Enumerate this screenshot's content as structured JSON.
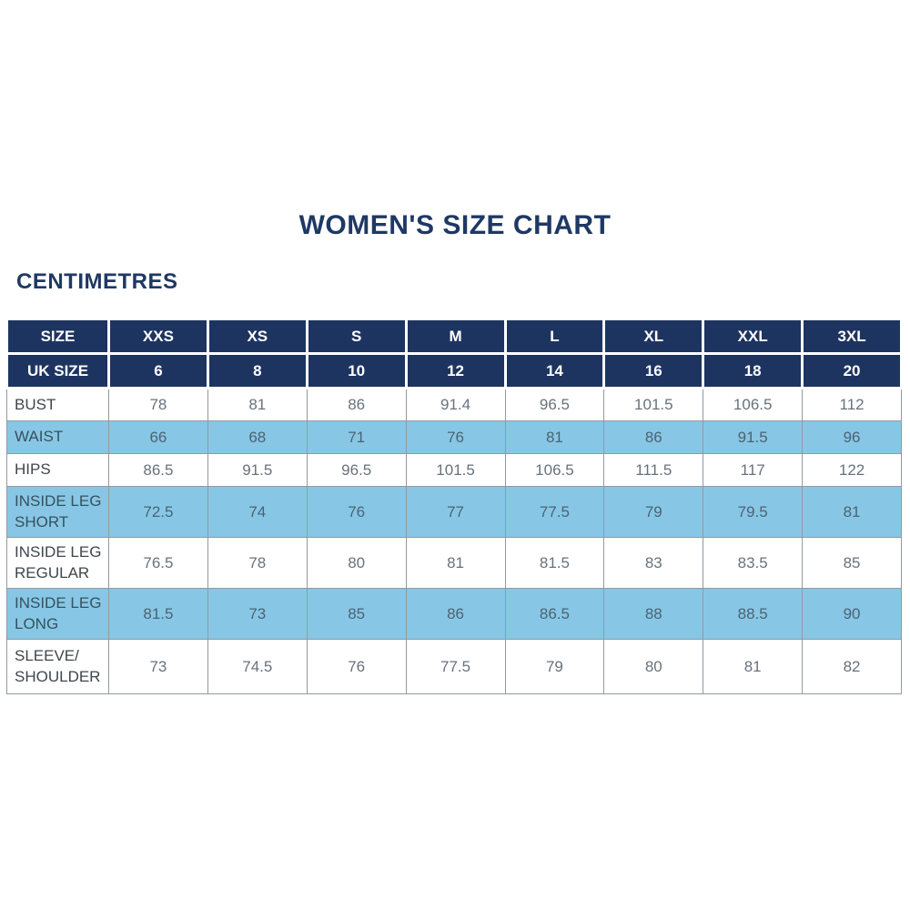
{
  "page": {
    "title": "WOMEN'S SIZE CHART",
    "unit_label": "CENTIMETRES"
  },
  "colors": {
    "header_navy": "#1e3460",
    "title_navy": "#1f3864",
    "row_light_blue": "#87c7e5",
    "label_text": "#3f464c",
    "value_text": "#68727c",
    "grid_border": "#93999f"
  },
  "table": {
    "header_rows": [
      {
        "cells": [
          "SIZE",
          "XXS",
          "XS",
          "S",
          "M",
          "L",
          "XL",
          "XXL",
          "3XL"
        ]
      },
      {
        "cells": [
          "UK SIZE",
          "6",
          "8",
          "10",
          "12",
          "14",
          "16",
          "18",
          "20"
        ]
      }
    ],
    "rows": [
      {
        "label": "BUST",
        "values": [
          "78",
          "81",
          "86",
          "91.4",
          "96.5",
          "101.5",
          "106.5",
          "112"
        ]
      },
      {
        "label": "WAIST",
        "values": [
          "66",
          "68",
          "71",
          "76",
          "81",
          "86",
          "91.5",
          "96"
        ]
      },
      {
        "label": "HIPS",
        "values": [
          "86.5",
          "91.5",
          "96.5",
          "101.5",
          "106.5",
          "111.5",
          "117",
          "122"
        ]
      },
      {
        "label": "INSIDE LEG\nSHORT",
        "values": [
          "72.5",
          "74",
          "76",
          "77",
          "77.5",
          "79",
          "79.5",
          "81"
        ]
      },
      {
        "label": "INSIDE LEG\nREGULAR",
        "values": [
          "76.5",
          "78",
          "80",
          "81",
          "81.5",
          "83",
          "83.5",
          "85"
        ]
      },
      {
        "label": "INSIDE LEG\nLONG",
        "values": [
          "81.5",
          "73",
          "85",
          "86",
          "86.5",
          "88",
          "88.5",
          "90"
        ]
      },
      {
        "label": "SLEEVE/\nSHOULDER",
        "values": [
          "73",
          "74.5",
          "76",
          "77.5",
          "79",
          "80",
          "81",
          "82"
        ]
      }
    ]
  }
}
